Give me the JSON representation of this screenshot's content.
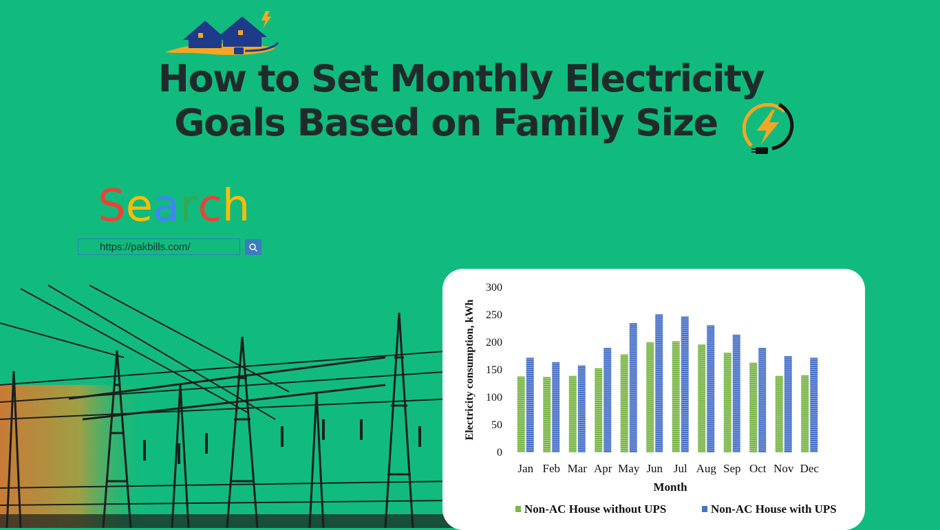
{
  "header": {
    "title_line1": "How to Set Monthly Electricity",
    "title_line2": "Goals Based on Family Size"
  },
  "search": {
    "word": "Search",
    "letter_colors": [
      "#ea4335",
      "#fbbc05",
      "#4285f4",
      "#34a853",
      "#ea4335",
      "#fbbc05"
    ],
    "url": "https://pakbills.com/",
    "button_icon": "search-icon"
  },
  "icons": {
    "logo": "house-plug-logo",
    "bolt": "lightning-plug-icon"
  },
  "colors": {
    "background": "#11bb7e",
    "title": "#1f2b2a",
    "series1": "#7ab648",
    "series2": "#4a72c9"
  },
  "chart_data": {
    "type": "bar",
    "categories": [
      "Jan",
      "Feb",
      "Mar",
      "Apr",
      "May",
      "Jun",
      "Jul",
      "Aug",
      "Sep",
      "Oct",
      "Nov",
      "Dec"
    ],
    "series": [
      {
        "name": "Non-AC House without UPS",
        "values": [
          138,
          137,
          139,
          153,
          178,
          200,
          202,
          196,
          181,
          163,
          139,
          140
        ]
      },
      {
        "name": "Non-AC House with UPS",
        "values": [
          172,
          164,
          158,
          190,
          235,
          251,
          247,
          231,
          214,
          190,
          175,
          172
        ]
      }
    ],
    "xlabel": "Month",
    "ylabel": "Electricity consumption, kWh",
    "ylim": [
      0,
      300
    ],
    "yticks": [
      0,
      50,
      100,
      150,
      200,
      250,
      300
    ],
    "legend_position": "bottom",
    "grid": false
  }
}
